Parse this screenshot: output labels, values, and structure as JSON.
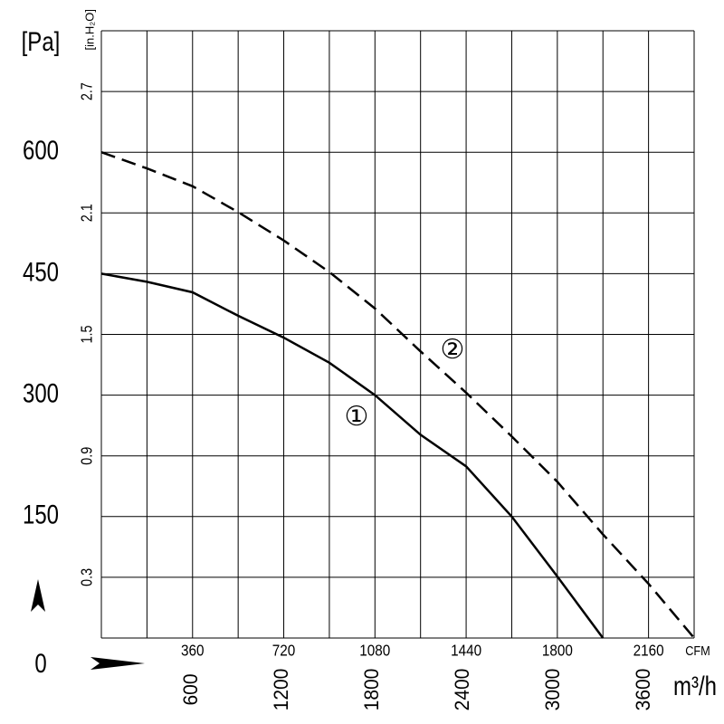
{
  "chart_data": {
    "type": "line",
    "ylabel": "[Pa]",
    "y2label": "[in.H₂O]",
    "xlabel": "CFM",
    "x2label": "m³/h",
    "xlim": [
      0,
      2340
    ],
    "xticks": [
      360,
      720,
      1080,
      1440,
      1800,
      2160
    ],
    "x2lim": [
      0,
      3930
    ],
    "x2ticks": [
      600,
      1200,
      1800,
      2400,
      3000,
      3600
    ],
    "ylim": [
      0,
      750
    ],
    "yticks": [
      0,
      150,
      300,
      450,
      600
    ],
    "y2lim": [
      0,
      3
    ],
    "y2ticks": [
      0.3,
      0.9,
      1.5,
      2.1,
      2.7
    ],
    "xgrid": [
      0,
      180,
      360,
      540,
      720,
      900,
      1080,
      1260,
      1440,
      1620,
      1800,
      1980,
      2160,
      2340
    ],
    "ygrid": [
      0,
      75,
      150,
      225,
      300,
      375,
      450,
      525,
      600,
      675,
      750
    ],
    "x": [
      0,
      180,
      360,
      540,
      720,
      900,
      1080,
      1260,
      1440,
      1620,
      1800,
      1980,
      2160,
      2340
    ],
    "series": [
      {
        "name": "①",
        "color": "#000000",
        "dash": false,
        "values": [
          450,
          440,
          427,
          398,
          371,
          340,
          300,
          251,
          212,
          150,
          76,
          0,
          null,
          null
        ]
      },
      {
        "name": "②",
        "color": "#000000",
        "dash": true,
        "values": [
          600,
          580,
          558,
          526,
          491,
          452,
          407,
          354,
          303,
          249,
          193,
          128,
          67,
          0
        ]
      }
    ]
  }
}
